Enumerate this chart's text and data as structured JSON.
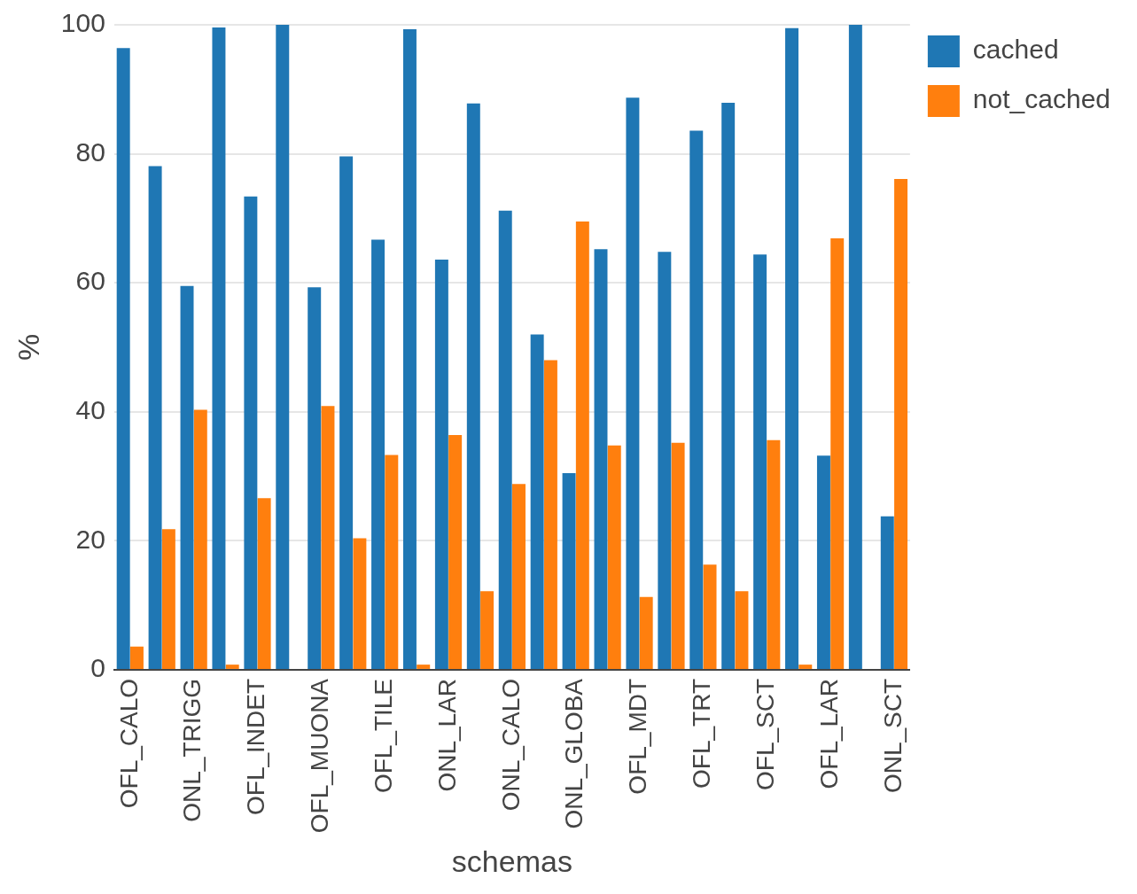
{
  "chart_data": {
    "type": "bar",
    "xlabel": "schemas",
    "ylabel": "%",
    "categories": [
      "OFL_CALO",
      null,
      "ONL_TRIGG",
      null,
      "OFL_INDET",
      null,
      "OFL_MUONA",
      null,
      "OFL_TILE",
      null,
      "ONL_LAR",
      null,
      "ONL_CALO",
      null,
      "ONL_GLOBA",
      null,
      "OFL_MDT",
      null,
      "OFL_TRT",
      null,
      "OFL_SCT",
      null,
      "OFL_LAR",
      null,
      "ONL_SCT"
    ],
    "series": [
      {
        "name": "cached",
        "color": "#1f77b4",
        "values": [
          96.4,
          78.1,
          59.5,
          99.6,
          73.4,
          100,
          59.3,
          79.6,
          66.7,
          99.3,
          63.6,
          87.8,
          71.2,
          52.0,
          30.5,
          65.2,
          88.7,
          64.8,
          83.6,
          87.9,
          64.4,
          99.5,
          33.2,
          100,
          23.8
        ]
      },
      {
        "name": "not_cached",
        "color": "#ff7f0e",
        "values": [
          3.6,
          21.8,
          40.3,
          0.8,
          26.6,
          0,
          40.9,
          20.4,
          33.3,
          0.8,
          36.4,
          12.2,
          28.8,
          48.0,
          69.5,
          34.8,
          11.3,
          35.2,
          16.3,
          12.2,
          35.6,
          0.8,
          66.9,
          0,
          76.1
        ]
      }
    ],
    "ylim": [
      0,
      100
    ],
    "yticks": [
      0,
      20,
      40,
      60,
      80,
      100
    ],
    "grid": "y",
    "legend": "top right"
  }
}
